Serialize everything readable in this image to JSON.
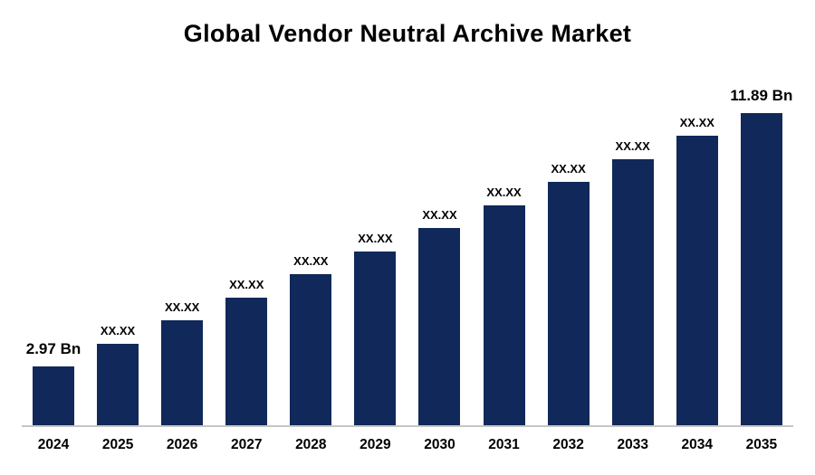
{
  "chart_data": {
    "type": "bar",
    "title": "Global Vendor Neutral Archive Market",
    "categories": [
      "2024",
      "2025",
      "2026",
      "2027",
      "2028",
      "2029",
      "2030",
      "2031",
      "2032",
      "2033",
      "2034",
      "2035"
    ],
    "values": [
      2.97,
      3.78,
      4.59,
      5.4,
      6.21,
      7.02,
      7.84,
      8.65,
      9.46,
      10.27,
      11.08,
      11.89
    ],
    "bar_labels": [
      "2.97 Bn",
      "XX.XX",
      "XX.XX",
      "XX.XX",
      "XX.XX",
      "XX.XX",
      "XX.XX",
      "XX.XX",
      "XX.XX",
      "XX.XX",
      "XX.XX",
      "11.89 Bn"
    ],
    "first_value_label": "2.97 Bn",
    "last_value_label": "11.89 Bn",
    "xlabel": "",
    "ylabel": "",
    "ylim": [
      0,
      12
    ],
    "unit": "Bn",
    "grid": false,
    "legend": null,
    "bar_color": "#10295a",
    "baseline_color": "#c6c6c6",
    "text_color": "#000000"
  }
}
